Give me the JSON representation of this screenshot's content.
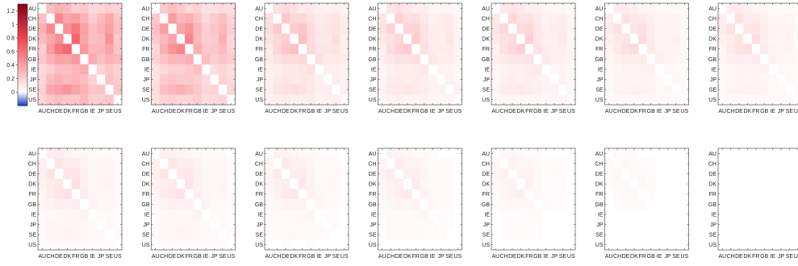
{
  "chart_data": {
    "type": "heatmap",
    "layout": {
      "rows": 2,
      "cols": 7
    },
    "countries": [
      "AU",
      "CH",
      "DE",
      "DK",
      "FR",
      "GB",
      "IE",
      "JP",
      "SE",
      "US"
    ],
    "colorbar": {
      "ticks": [
        1.2,
        1,
        0.8,
        0.6,
        0.4,
        0.2,
        0
      ],
      "range": [
        -0.2,
        1.3
      ]
    },
    "panel_intensity": [
      0.5,
      0.42,
      0.25,
      0.21,
      0.19,
      0.15,
      0.14,
      0.13,
      0.12,
      0.1,
      0.09,
      0.07,
      0.04,
      0.0
    ],
    "example_matrix": [
      [
        0.0,
        0.28,
        0.34,
        0.3,
        0.22,
        0.26,
        0.18,
        0.2,
        0.24,
        0.22
      ],
      [
        0.28,
        0.0,
        0.52,
        0.4,
        0.46,
        0.36,
        0.24,
        0.34,
        0.44,
        0.3
      ],
      [
        0.34,
        0.52,
        0.0,
        0.5,
        0.62,
        0.44,
        0.3,
        0.38,
        0.48,
        0.34
      ],
      [
        0.3,
        0.4,
        0.5,
        0.0,
        0.7,
        0.42,
        0.3,
        0.34,
        0.54,
        0.28
      ],
      [
        0.22,
        0.46,
        0.62,
        0.7,
        0.0,
        0.48,
        0.34,
        0.36,
        0.46,
        0.3
      ],
      [
        0.26,
        0.36,
        0.44,
        0.42,
        0.48,
        0.0,
        0.4,
        0.32,
        0.38,
        0.36
      ],
      [
        0.18,
        0.24,
        0.3,
        0.3,
        0.34,
        0.4,
        0.0,
        0.22,
        0.28,
        0.24
      ],
      [
        0.2,
        0.34,
        0.38,
        0.34,
        0.36,
        0.32,
        0.22,
        0.0,
        0.3,
        0.26
      ],
      [
        0.24,
        0.44,
        0.48,
        0.54,
        0.46,
        0.38,
        0.28,
        0.3,
        0.0,
        0.3
      ],
      [
        0.22,
        0.3,
        0.34,
        0.28,
        0.3,
        0.36,
        0.24,
        0.26,
        0.3,
        0.0
      ]
    ]
  }
}
